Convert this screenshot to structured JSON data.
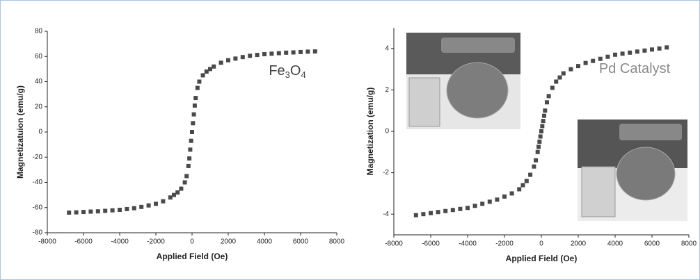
{
  "chart_data": [
    {
      "type": "scatter",
      "annotation": "Fe3O4",
      "x_label": "Applied Field (Oe)",
      "y_label": "Magnetizatuion (emu/g)",
      "color": "#4a4a4a",
      "xlim": [
        -8000,
        8000
      ],
      "xticks": [
        -8000,
        -6000,
        -4000,
        -2000,
        0,
        2000,
        4000,
        6000,
        8000
      ],
      "ylim": [
        -80,
        80
      ],
      "yticks": [
        -80,
        -60,
        -40,
        -20,
        0,
        20,
        40,
        60,
        80
      ],
      "x": [
        -6800,
        -6400,
        -6000,
        -5600,
        -5200,
        -4800,
        -4400,
        -4000,
        -3600,
        -3200,
        -2800,
        -2400,
        -2000,
        -1600,
        -1200,
        -1000,
        -800,
        -600,
        -400,
        -300,
        -200,
        -150,
        -100,
        -50,
        0,
        50,
        100,
        150,
        200,
        300,
        400,
        600,
        800,
        1000,
        1200,
        1600,
        2000,
        2400,
        2800,
        3200,
        3600,
        4000,
        4400,
        4800,
        5200,
        5600,
        6000,
        6400,
        6800
      ],
      "values": [
        -64,
        -63.8,
        -63.5,
        -63.2,
        -63,
        -62.6,
        -62.2,
        -61.8,
        -61.2,
        -60.5,
        -59.5,
        -58.3,
        -57,
        -55,
        -52,
        -50,
        -48,
        -45,
        -40,
        -35,
        -27,
        -21,
        -14,
        -7,
        0,
        7,
        14,
        21,
        27,
        35,
        40,
        45,
        48,
        50,
        52,
        55,
        57,
        58.3,
        59.5,
        60.5,
        61.2,
        61.8,
        62.2,
        62.6,
        63,
        63.2,
        63.5,
        63.8,
        64
      ]
    },
    {
      "type": "scatter",
      "annotation": "Pd Catalyst",
      "x_label": "Applied Field (Oe)",
      "y_label": "Magnetization (emu/g)",
      "color": "#4a4a4a",
      "xlim": [
        -8000,
        8000
      ],
      "xticks": [
        -8000,
        -6000,
        -4000,
        -2000,
        0,
        2000,
        4000,
        6000,
        8000
      ],
      "ylim": [
        -5,
        5
      ],
      "yticks": [
        -4,
        -2,
        0,
        2,
        4
      ],
      "x": [
        -6800,
        -6400,
        -6000,
        -5600,
        -5200,
        -4800,
        -4400,
        -4000,
        -3600,
        -3200,
        -2800,
        -2400,
        -2000,
        -1600,
        -1200,
        -1000,
        -800,
        -600,
        -400,
        -300,
        -200,
        -150,
        -100,
        -50,
        0,
        50,
        100,
        150,
        200,
        300,
        400,
        600,
        800,
        1000,
        1200,
        1600,
        2000,
        2400,
        2800,
        3200,
        3600,
        4000,
        4400,
        4800,
        5200,
        5600,
        6000,
        6400,
        6800
      ],
      "values": [
        -4.05,
        -4,
        -3.95,
        -3.9,
        -3.85,
        -3.8,
        -3.75,
        -3.7,
        -3.6,
        -3.5,
        -3.4,
        -3.3,
        -3.15,
        -3,
        -2.8,
        -2.6,
        -2.4,
        -2.1,
        -1.7,
        -1.4,
        -1,
        -0.75,
        -0.5,
        -0.25,
        0,
        0.25,
        0.5,
        0.75,
        1,
        1.4,
        1.7,
        2.1,
        2.4,
        2.6,
        2.8,
        3,
        3.15,
        3.3,
        3.4,
        3.5,
        3.6,
        3.7,
        3.75,
        3.8,
        3.85,
        3.9,
        3.95,
        4,
        4.05
      ]
    }
  ]
}
